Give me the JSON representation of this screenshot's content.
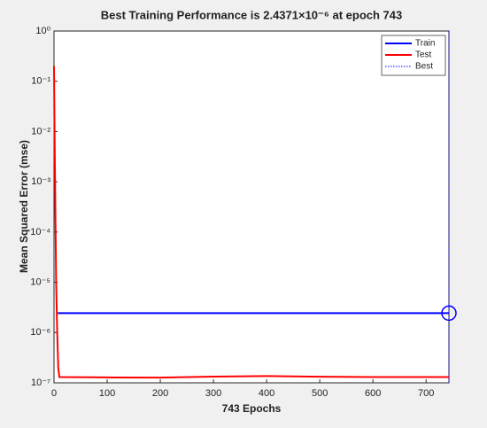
{
  "chart_data": {
    "type": "line",
    "title": "Best Training Performance is 2.4371×10⁻⁶ at epoch 743",
    "xlabel": "743 Epochs",
    "ylabel": "Mean Squared Error  (mse)",
    "xlim": [
      0,
      743
    ],
    "xticks": [
      0,
      100,
      200,
      300,
      400,
      500,
      600,
      700
    ],
    "ylim": [
      1e-07,
      1
    ],
    "ylog": true,
    "yticks": [
      {
        "value": 1e-07,
        "label": "10⁻⁷"
      },
      {
        "value": 1e-06,
        "label": "10⁻⁶"
      },
      {
        "value": 1e-05,
        "label": "10⁻⁵"
      },
      {
        "value": 0.0001,
        "label": "10⁻⁴"
      },
      {
        "value": 0.001,
        "label": "10⁻³"
      },
      {
        "value": 0.01,
        "label": "10⁻²"
      },
      {
        "value": 0.1,
        "label": "10⁻¹"
      },
      {
        "value": 1,
        "label": "10⁰"
      }
    ],
    "grid": false,
    "legend": "upper right",
    "series": [
      {
        "name": "Train",
        "color": "#0000ff",
        "style": "solid",
        "x": [
          7,
          743
        ],
        "values": [
          2.4371e-06,
          2.4371e-06
        ]
      },
      {
        "name": "Test",
        "color": "#ff0000",
        "style": "solid",
        "x": [
          0,
          1,
          2,
          4,
          6,
          8,
          10,
          100,
          200,
          300,
          400,
          500,
          600,
          743
        ],
        "values": [
          0.2,
          0.01,
          0.001,
          1e-05,
          1e-06,
          2e-07,
          1.3e-07,
          1.28e-07,
          1.27e-07,
          1.33e-07,
          1.36e-07,
          1.32e-07,
          1.3e-07,
          1.3e-07
        ]
      },
      {
        "name": "Best",
        "color": "#0000ff",
        "style": "dotted",
        "x": [
          743
        ],
        "values": [
          2.4371e-06
        ]
      }
    ]
  }
}
